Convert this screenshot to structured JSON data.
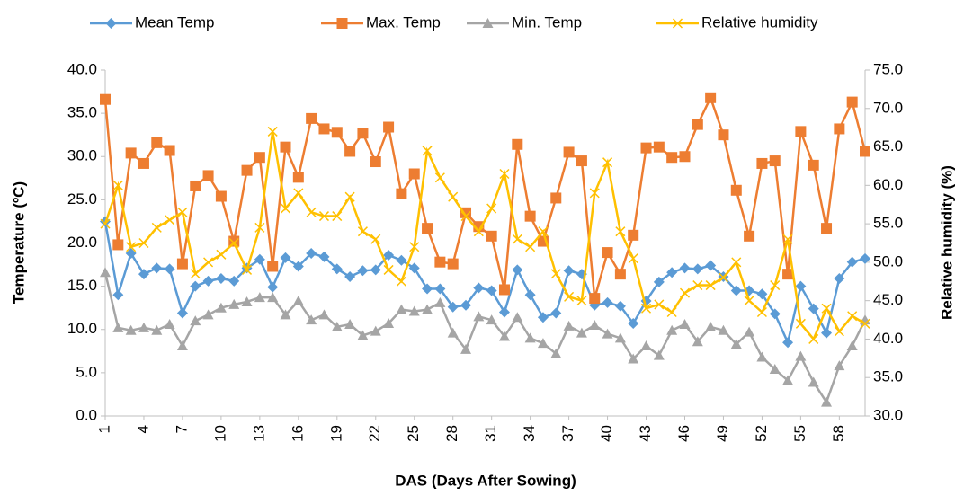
{
  "chart_data": {
    "type": "line",
    "x_label": "DAS (Days After Sowing)",
    "y_label": "Temperature (ºC)",
    "y2_label": "Relative humidity (%)",
    "categories": [
      1,
      null,
      null,
      4,
      null,
      null,
      7,
      null,
      null,
      10,
      null,
      null,
      13,
      null,
      null,
      16,
      null,
      null,
      19,
      null,
      null,
      22,
      null,
      null,
      25,
      null,
      null,
      28,
      null,
      null,
      31,
      null,
      null,
      34,
      null,
      null,
      37,
      null,
      null,
      40,
      null,
      null,
      43,
      null,
      null,
      46,
      null,
      null,
      49,
      null,
      null,
      52,
      null,
      null,
      55,
      null,
      null,
      58,
      null,
      null
    ],
    "ylim": [
      0,
      40
    ],
    "yticks": [
      {
        "value": 0,
        "label": "0.0"
      },
      {
        "value": 5,
        "label": "5.0"
      },
      {
        "value": 10,
        "label": "10.0"
      },
      {
        "value": 15,
        "label": "15.0"
      },
      {
        "value": 20,
        "label": "20.0"
      },
      {
        "value": 25,
        "label": "25.0"
      },
      {
        "value": 30,
        "label": "30.0"
      },
      {
        "value": 35,
        "label": "35.0"
      },
      {
        "value": 40,
        "label": "40.0"
      }
    ],
    "y2lim": [
      30,
      75
    ],
    "y2ticks": [
      {
        "value": 30,
        "label": "30.0"
      },
      {
        "value": 35,
        "label": "35.0"
      },
      {
        "value": 40,
        "label": "40.0"
      },
      {
        "value": 45,
        "label": "45.0"
      },
      {
        "value": 50,
        "label": "50.0"
      },
      {
        "value": 55,
        "label": "55.0"
      },
      {
        "value": 60,
        "label": "60.0"
      },
      {
        "value": 65,
        "label": "65.0"
      },
      {
        "value": 70,
        "label": "70.0"
      },
      {
        "value": 75,
        "label": "75.0"
      }
    ],
    "legend": "top",
    "series": [
      {
        "name": "Mean Temp",
        "color": "#5B9BD5",
        "marker": "diamond",
        "values": [
          22.5,
          14.0,
          18.8,
          16.4,
          17.1,
          17.0,
          11.9,
          15.0,
          15.6,
          15.9,
          15.6,
          17.1,
          18.1,
          14.9,
          18.3,
          17.3,
          18.8,
          18.4,
          17.0,
          16.1,
          16.8,
          16.9,
          18.6,
          18.0,
          17.1,
          14.7,
          14.7,
          12.6,
          12.8,
          14.8,
          14.5,
          12.0,
          16.9,
          14.0,
          11.4,
          11.9,
          16.8,
          16.4,
          12.8,
          13.1,
          12.7,
          10.7,
          13.3,
          15.5,
          16.6,
          17.1,
          17.0,
          17.4,
          16.1,
          14.5,
          14.5,
          14.1,
          11.8,
          8.5,
          15.0,
          12.4,
          9.6,
          15.9,
          17.8,
          18.2
        ]
      },
      {
        "name": "Max. Temp",
        "color": "#ED7D31",
        "marker": "square",
        "values": [
          36.6,
          19.8,
          30.4,
          29.2,
          31.6,
          30.7,
          17.6,
          26.6,
          27.8,
          25.4,
          20.2,
          28.4,
          29.9,
          17.3,
          31.1,
          27.6,
          34.4,
          33.2,
          32.8,
          30.6,
          32.7,
          29.4,
          33.4,
          25.7,
          28.0,
          21.7,
          17.8,
          17.6,
          23.5,
          21.9,
          20.8,
          14.6,
          31.4,
          23.1,
          20.2,
          25.2,
          30.5,
          29.5,
          13.6,
          18.9,
          16.4,
          20.9,
          31.0,
          31.1,
          29.9,
          30.0,
          33.7,
          36.8,
          32.5,
          26.1,
          20.8,
          29.2,
          29.5,
          16.4,
          32.9,
          29.0,
          21.7,
          33.2,
          36.3,
          30.6
        ]
      },
      {
        "name": "Min. Temp",
        "color": "#A5A5A5",
        "marker": "triangle",
        "values": [
          16.6,
          10.2,
          9.9,
          10.2,
          9.9,
          10.6,
          8.1,
          11.0,
          11.7,
          12.5,
          12.9,
          13.2,
          13.7,
          13.7,
          11.7,
          13.3,
          11.1,
          11.7,
          10.3,
          10.6,
          9.3,
          9.8,
          10.7,
          12.3,
          12.1,
          12.3,
          13.1,
          9.6,
          7.7,
          11.5,
          11.1,
          9.2,
          11.4,
          9.0,
          8.4,
          7.2,
          10.4,
          9.6,
          10.5,
          9.5,
          9.0,
          6.6,
          8.1,
          7.0,
          9.9,
          10.6,
          8.6,
          10.3,
          9.9,
          8.3,
          9.7,
          6.8,
          5.4,
          4.1,
          6.9,
          3.9,
          1.6,
          5.8,
          8.1,
          11.1
        ]
      },
      {
        "name": "Relative humidity",
        "color": "#FFC000",
        "marker": "x",
        "axis": "y2",
        "values": [
          55,
          60,
          52,
          52.5,
          54.5,
          55.5,
          56.5,
          48.5,
          50,
          51,
          52.5,
          49,
          54.5,
          67,
          57,
          59,
          56.5,
          56,
          56,
          58.5,
          54,
          53,
          49,
          47.5,
          52,
          64.5,
          61,
          58.5,
          56,
          54,
          57,
          61.5,
          53,
          52,
          54,
          48.5,
          45.5,
          45,
          59,
          63,
          54,
          50.5,
          44,
          44.5,
          43.5,
          46,
          47,
          47,
          48,
          50,
          45,
          43.5,
          47,
          53,
          42,
          40,
          44,
          41,
          43,
          42
        ]
      }
    ]
  }
}
